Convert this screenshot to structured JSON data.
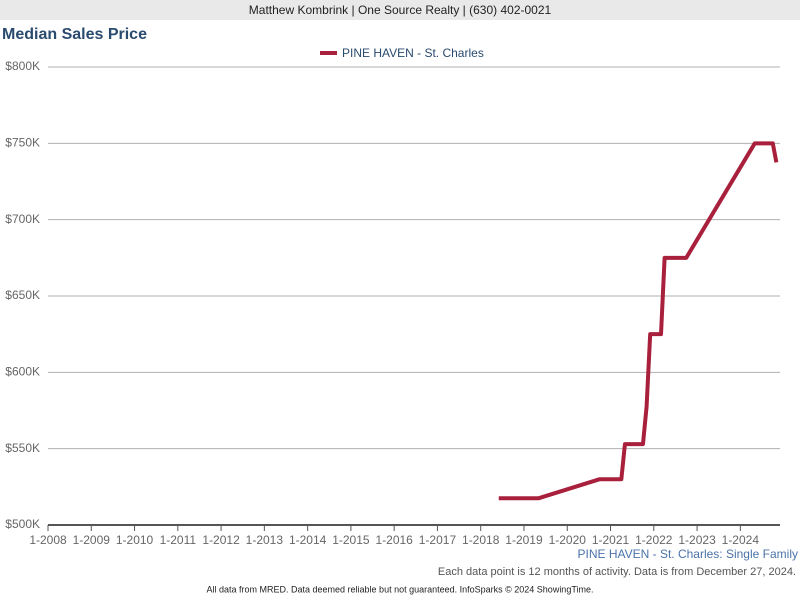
{
  "header": "Matthew Kombrink | One Source Realty | (630) 402-0021",
  "chart_data": {
    "type": "line",
    "title": "Median Sales Price",
    "x": [
      "6-2018",
      "5-2019",
      "10-2020",
      "4-2021",
      "5-2021",
      "10-2021",
      "11-2021",
      "12-2021",
      "3-2022",
      "4-2022",
      "10-2022",
      "5-2024",
      "10-2024",
      "11-2024"
    ],
    "series": [
      {
        "name": "PINE HAVEN - St. Charles",
        "color": "#a8203c",
        "values": [
          517500,
          517500,
          530000,
          530000,
          553000,
          553000,
          577500,
          625000,
          625000,
          675000,
          675000,
          750000,
          750000,
          737500
        ]
      }
    ],
    "xlim": [
      "1-2008",
      "12-2024"
    ],
    "xticks": [
      "1-2008",
      "1-2009",
      "1-2010",
      "1-2011",
      "1-2012",
      "1-2013",
      "1-2014",
      "1-2015",
      "1-2016",
      "1-2017",
      "1-2018",
      "1-2019",
      "1-2020",
      "1-2021",
      "1-2022",
      "1-2023",
      "1-2024"
    ],
    "ylim": [
      500000,
      800000
    ],
    "yticks": [
      {
        "value": 500000,
        "label": "$500K"
      },
      {
        "value": 550000,
        "label": "$550K"
      },
      {
        "value": 600000,
        "label": "$600K"
      },
      {
        "value": 650000,
        "label": "$650K"
      },
      {
        "value": 700000,
        "label": "$700K"
      },
      {
        "value": 750000,
        "label": "$750K"
      },
      {
        "value": 800000,
        "label": "$800K"
      }
    ],
    "grid": true,
    "subtitle": "PINE HAVEN - St. Charles: Single Family",
    "note": "Each data point is 12 months of activity. Data is from December 27, 2024."
  },
  "footer": "All data from MRED. Data deemed reliable but not guaranteed. InfoSparks © 2024 ShowingTime."
}
